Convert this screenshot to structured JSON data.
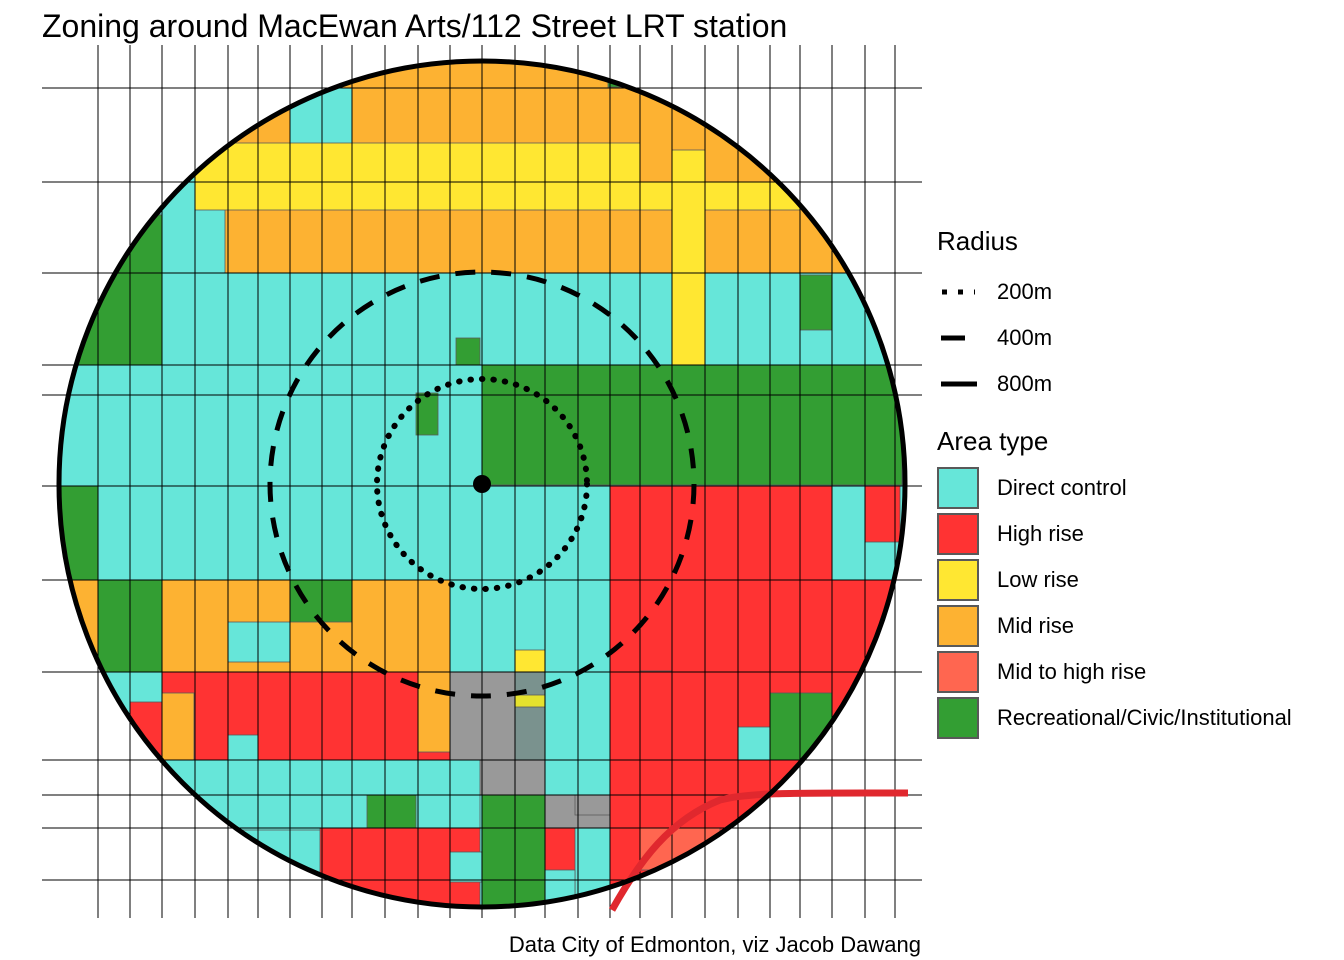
{
  "title": "Zoning around MacEwan Arts/112 Street LRT station",
  "caption": "Data City of Edmonton, viz Jacob Dawang",
  "legend": {
    "radius_title": "Radius",
    "radius_items": [
      {
        "label": "200m",
        "style": "dotted"
      },
      {
        "label": "400m",
        "style": "dashed"
      },
      {
        "label": "800m",
        "style": "solid"
      }
    ],
    "area_title": "Area type",
    "area_items": [
      {
        "label": "Direct control",
        "color": "#66E6D9"
      },
      {
        "label": "High rise",
        "color": "#FF3333"
      },
      {
        "label": "Low rise",
        "color": "#FFE732"
      },
      {
        "label": "Mid rise",
        "color": "#FDB232"
      },
      {
        "label": "Mid to high rise",
        "color": "#FF6650"
      },
      {
        "label": "Recreational/Civic/Institutional",
        "color": "#339E33"
      }
    ]
  },
  "colors": {
    "unclassified": "#999999",
    "lrt_line": "#E0282E"
  }
}
